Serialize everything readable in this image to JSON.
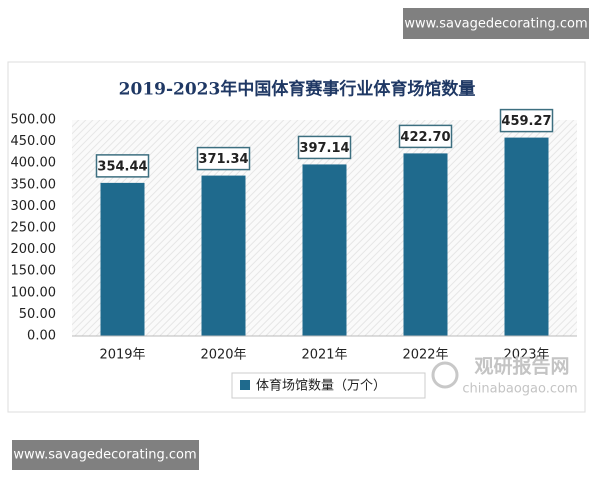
{
  "chart_data": {
    "type": "bar",
    "title": "2019-2023年中国体育赛事行业体育场馆数量",
    "categories": [
      "2019年",
      "2020年",
      "2021年",
      "2022年",
      "2023年"
    ],
    "series": [
      {
        "name": "体育场馆数量（万个）",
        "color": "#1f6a8d",
        "values": [
          354.44,
          371.34,
          397.14,
          422.7,
          459.27
        ],
        "value_labels": [
          "354.44",
          "371.34",
          "397.14",
          "422.70",
          "459.27"
        ]
      }
    ],
    "ylim": [
      0,
      500
    ],
    "yticks": [
      {
        "value": 0,
        "label": "0.00"
      },
      {
        "value": 50,
        "label": "50.00"
      },
      {
        "value": 100,
        "label": "100.00"
      },
      {
        "value": 150,
        "label": "150.00"
      },
      {
        "value": 200,
        "label": "200.00"
      },
      {
        "value": 250,
        "label": "250.00"
      },
      {
        "value": 300,
        "label": "300.00"
      },
      {
        "value": 350,
        "label": "350.00"
      },
      {
        "value": 400,
        "label": "400.00"
      },
      {
        "value": 450,
        "label": "450.00"
      },
      {
        "value": 500,
        "label": "500.00"
      }
    ],
    "legend": "bottom"
  },
  "watermarks": {
    "top": "www.savagedecorating.com",
    "bottom": "www.savagedecorating.com",
    "logo": "观研报告网",
    "logo_url": "chinabaogao.com"
  }
}
